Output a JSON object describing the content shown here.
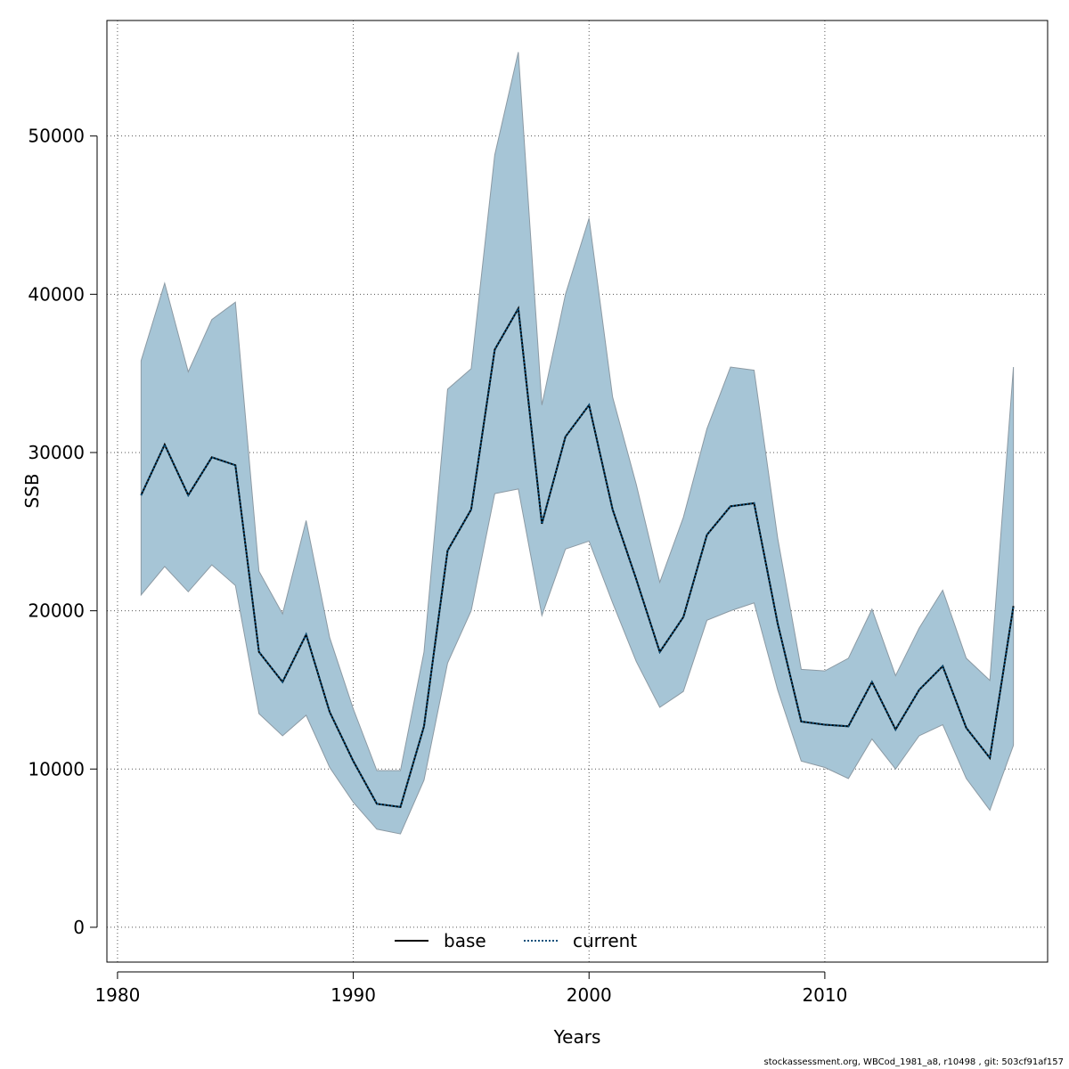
{
  "chart_data": {
    "type": "line",
    "title": "",
    "xlabel": "Years",
    "ylabel": "SSB",
    "xlim": [
      1979.55,
      2019.45
    ],
    "ylim": [
      -2200,
      57300
    ],
    "x_ticks": [
      1980,
      1990,
      2000,
      2010
    ],
    "y_ticks": [
      0,
      10000,
      20000,
      30000,
      40000,
      50000
    ],
    "x_tick_labels": [
      "1980",
      "1990",
      "2000",
      "2010"
    ],
    "y_tick_labels": [
      "0",
      "10000",
      "20000",
      "30000",
      "40000",
      "50000"
    ],
    "grid": true,
    "x": [
      1981,
      1982,
      1983,
      1984,
      1985,
      1986,
      1987,
      1988,
      1989,
      1990,
      1991,
      1992,
      1993,
      1994,
      1995,
      1996,
      1997,
      1998,
      1999,
      2000,
      2001,
      2002,
      2003,
      2004,
      2005,
      2006,
      2007,
      2008,
      2009,
      2010,
      2011,
      2012,
      2013,
      2014,
      2015,
      2016,
      2017,
      2018
    ],
    "band": {
      "name": "confidence interval",
      "color": "#a6c5d6",
      "edge_color": "#8c9aa4",
      "upper": [
        35800,
        40700,
        35100,
        38400,
        39500,
        22500,
        19800,
        25700,
        18300,
        13800,
        9900,
        9900,
        17400,
        34000,
        35300,
        48800,
        55300,
        33000,
        40000,
        44800,
        33500,
        28000,
        21800,
        25900,
        31500,
        35400,
        35200,
        24600,
        16300,
        16200,
        17000,
        20100,
        15900,
        18900,
        21300,
        17000,
        15600,
        35400
      ],
      "lower": [
        21000,
        22800,
        21200,
        22900,
        21600,
        13500,
        12100,
        13400,
        10100,
        7900,
        6200,
        5900,
        9300,
        16700,
        20000,
        27400,
        27700,
        19700,
        23900,
        24400,
        20500,
        16800,
        13900,
        14900,
        19400,
        20000,
        20500,
        15000,
        10500,
        10100,
        9400,
        11900,
        10000,
        12100,
        12800,
        9400,
        7400,
        11500
      ]
    },
    "series": [
      {
        "name": "base",
        "style": "solid",
        "color": "#000000",
        "values": [
          27300,
          30500,
          27300,
          29700,
          29200,
          17400,
          15500,
          18500,
          13600,
          10500,
          7800,
          7600,
          12700,
          23800,
          26400,
          36500,
          39100,
          25500,
          31000,
          33000,
          26400,
          22000,
          17400,
          19600,
          24800,
          26600,
          26800,
          19200,
          13000,
          12800,
          12700,
          15500,
          12500,
          15000,
          16500,
          12600,
          10700,
          20300
        ]
      },
      {
        "name": "current",
        "style": "dotted",
        "color": "#0a4f7a",
        "values": [
          27300,
          30500,
          27300,
          29700,
          29200,
          17400,
          15500,
          18500,
          13600,
          10500,
          7800,
          7600,
          12700,
          23800,
          26400,
          36500,
          39100,
          25500,
          31000,
          33000,
          26400,
          22000,
          17400,
          19600,
          24800,
          26600,
          26800,
          19200,
          13000,
          12800,
          12700,
          15500,
          12500,
          15000,
          16500,
          12600,
          10700,
          20300
        ]
      }
    ],
    "legend": {
      "position": "bottom-center",
      "entries": [
        "base",
        "current"
      ]
    }
  },
  "footer": {
    "text": "stockassessment.org, WBCod_1981_a8, r10498 , git: 503cf91af157"
  }
}
